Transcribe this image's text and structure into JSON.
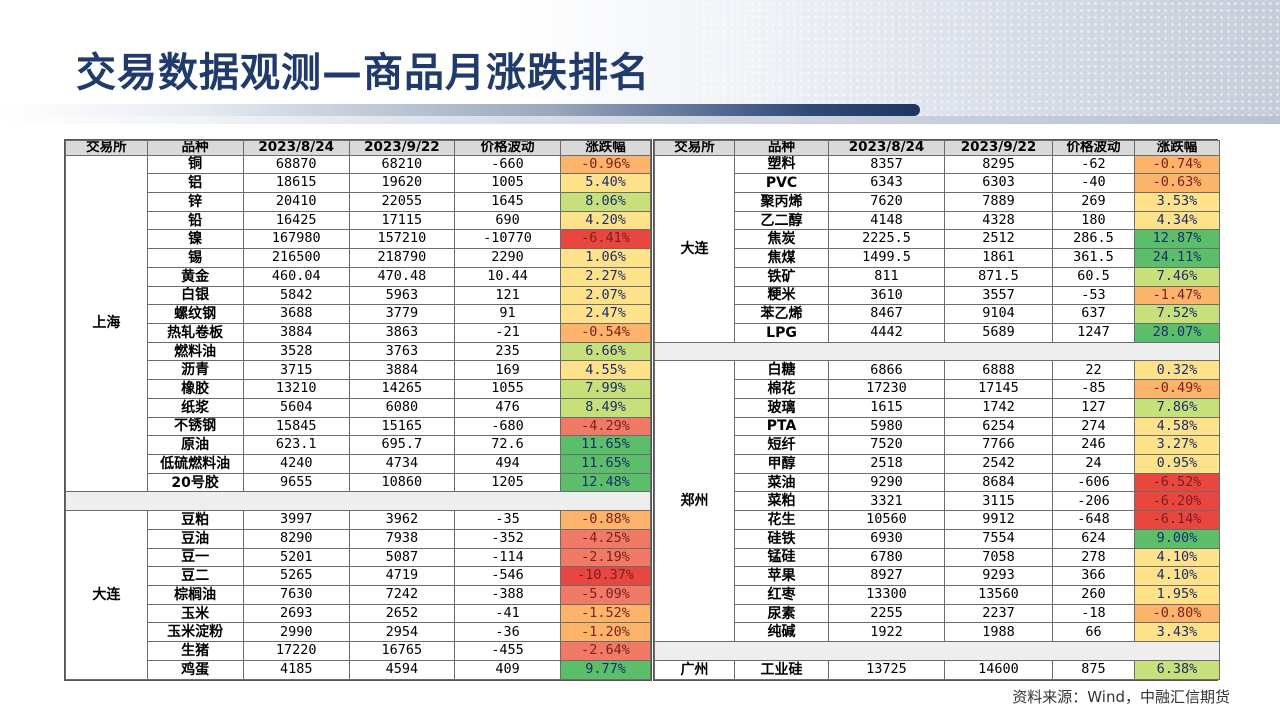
{
  "title": "交易数据观测—商品月涨跌排名",
  "source_note": "资料来源：Wind，中融汇信期货",
  "colors": {
    "title": "#1f3a6b",
    "header_bg": "#d9d9d9",
    "strong_up": "#5bbf6a",
    "up": "#c8e07a",
    "mild_up": "#fde28a",
    "mild_down": "#fcb36a",
    "down": "#f07a66",
    "strong_down": "#e8463f"
  },
  "headers": [
    "交易所",
    "品种",
    "2023/8/24",
    "2023/9/22",
    "价格波动",
    "涨跌幅"
  ],
  "left": {
    "groups": [
      {
        "exchange": "上海",
        "rows": [
          {
            "name": "铜",
            "d1": "68870",
            "d2": "68210",
            "diff": "-660",
            "pct": "-0.96%",
            "v": -0.96
          },
          {
            "name": "铝",
            "d1": "18615",
            "d2": "19620",
            "diff": "1005",
            "pct": "5.40%",
            "v": 5.4
          },
          {
            "name": "锌",
            "d1": "20410",
            "d2": "22055",
            "diff": "1645",
            "pct": "8.06%",
            "v": 8.06
          },
          {
            "name": "铅",
            "d1": "16425",
            "d2": "17115",
            "diff": "690",
            "pct": "4.20%",
            "v": 4.2
          },
          {
            "name": "镍",
            "d1": "167980",
            "d2": "157210",
            "diff": "-10770",
            "pct": "-6.41%",
            "v": -6.41
          },
          {
            "name": "锡",
            "d1": "216500",
            "d2": "218790",
            "diff": "2290",
            "pct": "1.06%",
            "v": 1.06
          },
          {
            "name": "黄金",
            "d1": "460.04",
            "d2": "470.48",
            "diff": "10.44",
            "pct": "2.27%",
            "v": 2.27
          },
          {
            "name": "白银",
            "d1": "5842",
            "d2": "5963",
            "diff": "121",
            "pct": "2.07%",
            "v": 2.07
          },
          {
            "name": "螺纹钢",
            "d1": "3688",
            "d2": "3779",
            "diff": "91",
            "pct": "2.47%",
            "v": 2.47
          },
          {
            "name": "热轧卷板",
            "d1": "3884",
            "d2": "3863",
            "diff": "-21",
            "pct": "-0.54%",
            "v": -0.54
          },
          {
            "name": "燃料油",
            "d1": "3528",
            "d2": "3763",
            "diff": "235",
            "pct": "6.66%",
            "v": 6.66
          },
          {
            "name": "沥青",
            "d1": "3715",
            "d2": "3884",
            "diff": "169",
            "pct": "4.55%",
            "v": 4.55
          },
          {
            "name": "橡胶",
            "d1": "13210",
            "d2": "14265",
            "diff": "1055",
            "pct": "7.99%",
            "v": 7.99
          },
          {
            "name": "纸浆",
            "d1": "5604",
            "d2": "6080",
            "diff": "476",
            "pct": "8.49%",
            "v": 8.49
          },
          {
            "name": "不锈钢",
            "d1": "15845",
            "d2": "15165",
            "diff": "-680",
            "pct": "-4.29%",
            "v": -4.29
          },
          {
            "name": "原油",
            "d1": "623.1",
            "d2": "695.7",
            "diff": "72.6",
            "pct": "11.65%",
            "v": 11.65
          },
          {
            "name": "低硫燃料油",
            "d1": "4240",
            "d2": "4734",
            "diff": "494",
            "pct": "11.65%",
            "v": 11.65
          },
          {
            "name": "20号胶",
            "d1": "9655",
            "d2": "10860",
            "diff": "1205",
            "pct": "12.48%",
            "v": 12.48
          }
        ]
      },
      {
        "exchange": "大连",
        "rows": [
          {
            "name": "豆粕",
            "d1": "3997",
            "d2": "3962",
            "diff": "-35",
            "pct": "-0.88%",
            "v": -0.88
          },
          {
            "name": "豆油",
            "d1": "8290",
            "d2": "7938",
            "diff": "-352",
            "pct": "-4.25%",
            "v": -4.25
          },
          {
            "name": "豆一",
            "d1": "5201",
            "d2": "5087",
            "diff": "-114",
            "pct": "-2.19%",
            "v": -2.19
          },
          {
            "name": "豆二",
            "d1": "5265",
            "d2": "4719",
            "diff": "-546",
            "pct": "-10.37%",
            "v": -10.37
          },
          {
            "name": "棕榈油",
            "d1": "7630",
            "d2": "7242",
            "diff": "-388",
            "pct": "-5.09%",
            "v": -5.09
          },
          {
            "name": "玉米",
            "d1": "2693",
            "d2": "2652",
            "diff": "-41",
            "pct": "-1.52%",
            "v": -1.52
          },
          {
            "name": "玉米淀粉",
            "d1": "2990",
            "d2": "2954",
            "diff": "-36",
            "pct": "-1.20%",
            "v": -1.2
          },
          {
            "name": "生猪",
            "d1": "17220",
            "d2": "16765",
            "diff": "-455",
            "pct": "-2.64%",
            "v": -2.64
          },
          {
            "name": "鸡蛋",
            "d1": "4185",
            "d2": "4594",
            "diff": "409",
            "pct": "9.77%",
            "v": 9.77
          }
        ]
      }
    ]
  },
  "right": {
    "groups": [
      {
        "exchange": "大连",
        "rows": [
          {
            "name": "塑料",
            "d1": "8357",
            "d2": "8295",
            "diff": "-62",
            "pct": "-0.74%",
            "v": -0.74
          },
          {
            "name": "PVC",
            "d1": "6343",
            "d2": "6303",
            "diff": "-40",
            "pct": "-0.63%",
            "v": -0.63
          },
          {
            "name": "聚丙烯",
            "d1": "7620",
            "d2": "7889",
            "diff": "269",
            "pct": "3.53%",
            "v": 3.53
          },
          {
            "name": "乙二醇",
            "d1": "4148",
            "d2": "4328",
            "diff": "180",
            "pct": "4.34%",
            "v": 4.34
          },
          {
            "name": "焦炭",
            "d1": "2225.5",
            "d2": "2512",
            "diff": "286.5",
            "pct": "12.87%",
            "v": 12.87
          },
          {
            "name": "焦煤",
            "d1": "1499.5",
            "d2": "1861",
            "diff": "361.5",
            "pct": "24.11%",
            "v": 24.11
          },
          {
            "name": "铁矿",
            "d1": "811",
            "d2": "871.5",
            "diff": "60.5",
            "pct": "7.46%",
            "v": 7.46
          },
          {
            "name": "粳米",
            "d1": "3610",
            "d2": "3557",
            "diff": "-53",
            "pct": "-1.47%",
            "v": -1.47
          },
          {
            "name": "苯乙烯",
            "d1": "8467",
            "d2": "9104",
            "diff": "637",
            "pct": "7.52%",
            "v": 7.52
          },
          {
            "name": "LPG",
            "d1": "4442",
            "d2": "5689",
            "diff": "1247",
            "pct": "28.07%",
            "v": 28.07
          }
        ]
      },
      {
        "exchange": "郑州",
        "rows": [
          {
            "name": "白糖",
            "d1": "6866",
            "d2": "6888",
            "diff": "22",
            "pct": "0.32%",
            "v": 0.32
          },
          {
            "name": "棉花",
            "d1": "17230",
            "d2": "17145",
            "diff": "-85",
            "pct": "-0.49%",
            "v": -0.49
          },
          {
            "name": "玻璃",
            "d1": "1615",
            "d2": "1742",
            "diff": "127",
            "pct": "7.86%",
            "v": 7.86
          },
          {
            "name": "PTA",
            "d1": "5980",
            "d2": "6254",
            "diff": "274",
            "pct": "4.58%",
            "v": 4.58
          },
          {
            "name": "短纤",
            "d1": "7520",
            "d2": "7766",
            "diff": "246",
            "pct": "3.27%",
            "v": 3.27
          },
          {
            "name": "甲醇",
            "d1": "2518",
            "d2": "2542",
            "diff": "24",
            "pct": "0.95%",
            "v": 0.95
          },
          {
            "name": "菜油",
            "d1": "9290",
            "d2": "8684",
            "diff": "-606",
            "pct": "-6.52%",
            "v": -6.52
          },
          {
            "name": "菜粕",
            "d1": "3321",
            "d2": "3115",
            "diff": "-206",
            "pct": "-6.20%",
            "v": -6.2
          },
          {
            "name": "花生",
            "d1": "10560",
            "d2": "9912",
            "diff": "-648",
            "pct": "-6.14%",
            "v": -6.14
          },
          {
            "name": "硅铁",
            "d1": "6930",
            "d2": "7554",
            "diff": "624",
            "pct": "9.00%",
            "v": 9.0
          },
          {
            "name": "锰硅",
            "d1": "6780",
            "d2": "7058",
            "diff": "278",
            "pct": "4.10%",
            "v": 4.1
          },
          {
            "name": "苹果",
            "d1": "8927",
            "d2": "9293",
            "diff": "366",
            "pct": "4.10%",
            "v": 4.1
          },
          {
            "name": "红枣",
            "d1": "13300",
            "d2": "13560",
            "diff": "260",
            "pct": "1.95%",
            "v": 1.95
          },
          {
            "name": "尿素",
            "d1": "2255",
            "d2": "2237",
            "diff": "-18",
            "pct": "-0.80%",
            "v": -0.8
          },
          {
            "name": "纯碱",
            "d1": "1922",
            "d2": "1988",
            "diff": "66",
            "pct": "3.43%",
            "v": 3.43
          }
        ]
      },
      {
        "exchange": "广州",
        "rows": [
          {
            "name": "工业硅",
            "d1": "13725",
            "d2": "14600",
            "diff": "875",
            "pct": "6.38%",
            "v": 6.38
          }
        ]
      }
    ]
  }
}
